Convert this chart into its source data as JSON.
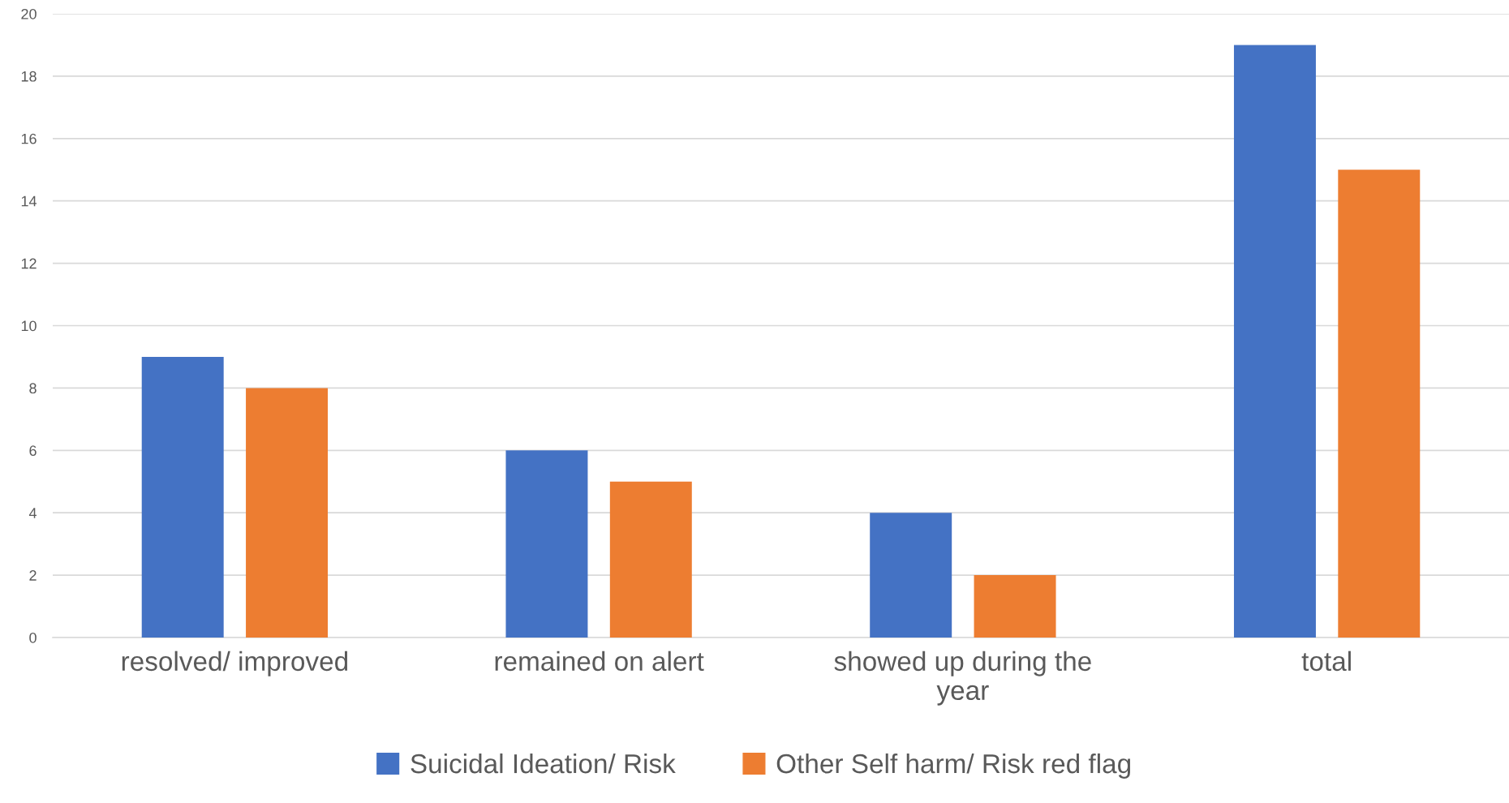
{
  "chart_data": {
    "type": "bar",
    "categories": [
      "resolved/ improved",
      "remained on alert",
      "showed up during the\nyear",
      "total"
    ],
    "series": [
      {
        "name": "Suicidal Ideation/ Risk",
        "color": "#4472c4",
        "values": [
          9,
          6,
          4,
          19
        ]
      },
      {
        "name": "Other Self harm/ Risk red flag",
        "color": "#ed7d31",
        "values": [
          8,
          5,
          2,
          15
        ]
      }
    ],
    "ylim": [
      0,
      20
    ],
    "yticks": [
      0,
      2,
      4,
      6,
      8,
      10,
      12,
      14,
      16,
      18,
      20
    ],
    "grid": "y",
    "legend": "bottom"
  }
}
